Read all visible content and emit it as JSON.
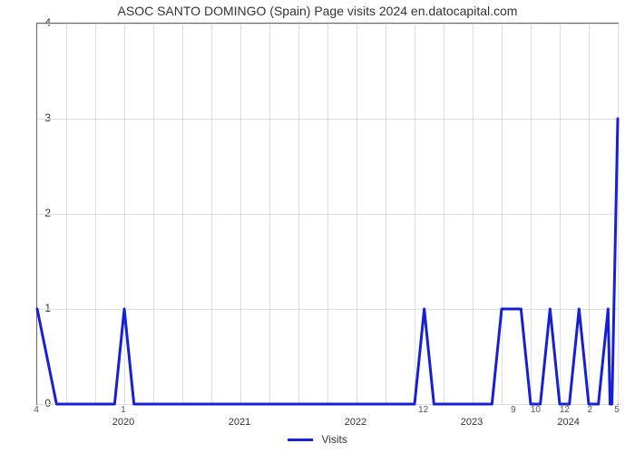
{
  "chart": {
    "type": "line",
    "title": "ASOC SANTO DOMINGO (Spain) Page visits 2024 en.datocapital.com",
    "title_fontsize": 14,
    "background_color": "#ffffff",
    "grid_color": "#dddddd",
    "axis_color": "#666666",
    "text_color": "#333333",
    "line_color": "#1620d6",
    "line_width": 3,
    "ylabel_ticks": [
      0,
      1,
      2,
      3,
      4
    ],
    "ylim": [
      0,
      4
    ],
    "x_domain": [
      0,
      60
    ],
    "year_labels": [
      {
        "label": "2020",
        "x_center": 9
      },
      {
        "label": "2021",
        "x_center": 21
      },
      {
        "label": "2022",
        "x_center": 33
      },
      {
        "label": "2023",
        "x_center": 45
      },
      {
        "label": "2024",
        "x_center": 55
      }
    ],
    "value_labels": [
      {
        "label": "4",
        "x": 0
      },
      {
        "label": "1",
        "x": 9
      },
      {
        "label": "12",
        "x": 40
      },
      {
        "label": "9",
        "x": 49.3
      },
      {
        "label": "10",
        "x": 51.6
      },
      {
        "label": "12",
        "x": 54.6
      },
      {
        "label": "2",
        "x": 57.2
      },
      {
        "label": "5",
        "x": 60
      }
    ],
    "vgrid_x": [
      3,
      6,
      9,
      12,
      15,
      18,
      21,
      24,
      27,
      30,
      33,
      36,
      39,
      42,
      45,
      48,
      51,
      54,
      57,
      60
    ],
    "series": [
      {
        "name": "Visits",
        "points": [
          [
            0,
            1
          ],
          [
            2,
            0
          ],
          [
            8,
            0
          ],
          [
            9,
            1
          ],
          [
            10,
            0
          ],
          [
            39,
            0
          ],
          [
            40,
            1
          ],
          [
            41,
            0
          ],
          [
            47,
            0
          ],
          [
            48,
            1
          ],
          [
            50,
            1
          ],
          [
            51,
            0
          ],
          [
            52,
            0
          ],
          [
            53,
            1
          ],
          [
            54,
            0
          ],
          [
            55,
            0
          ],
          [
            56,
            1
          ],
          [
            57,
            0
          ],
          [
            58,
            0
          ],
          [
            59,
            1
          ],
          [
            59.2,
            0
          ],
          [
            59.4,
            0
          ],
          [
            60,
            3
          ]
        ]
      }
    ],
    "legend_label": "Visits"
  }
}
